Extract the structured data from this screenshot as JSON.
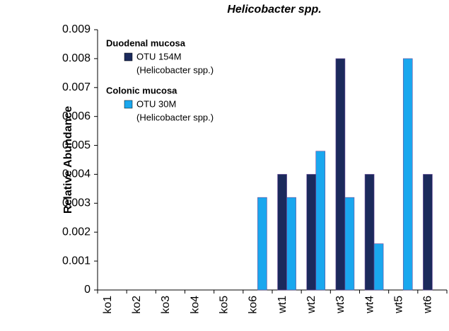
{
  "chart_data": {
    "type": "bar",
    "title": "Helicobacter spp.",
    "y_label": "Relative Abundance",
    "categories": [
      "ko1",
      "ko2",
      "ko3",
      "ko4",
      "ko5",
      "ko6",
      "wt1",
      "wt2",
      "wt3",
      "wt4",
      "wt5",
      "wt6"
    ],
    "series": [
      {
        "group": "Duodenal mucosa",
        "name": "OTU 154M",
        "note": "(Helicobacter spp.)",
        "color": "#1b2a5c",
        "values": [
          0,
          0,
          0,
          0,
          0,
          0,
          0.004,
          0.004,
          0.008,
          0.004,
          0,
          0.004
        ]
      },
      {
        "group": "Colonic mucosa",
        "name": "OTU 30M",
        "note": "(Helicobacter spp.)",
        "color": "#1aa7ee",
        "values": [
          0,
          0,
          0,
          0,
          0,
          0.0032,
          0.0032,
          0.0048,
          0.0032,
          0.0016,
          0.008,
          0
        ]
      }
    ],
    "ylim": [
      0,
      0.009
    ],
    "yticks": [
      0,
      0.001,
      0.002,
      0.003,
      0.004,
      0.005,
      0.006,
      0.007,
      0.008,
      0.009
    ],
    "legend": "upper left"
  }
}
